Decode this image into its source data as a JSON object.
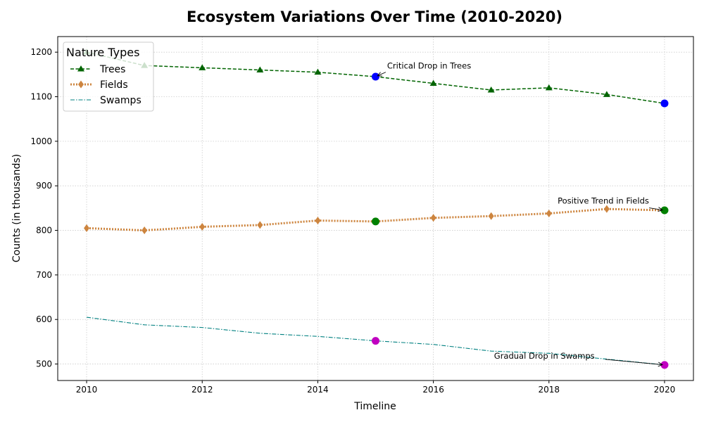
{
  "chart_data": {
    "type": "line",
    "title": "Ecosystem Variations Over Time (2010-2020)",
    "xlabel": "Timeline",
    "ylabel": "Counts (in thousands)",
    "xlim": [
      2009.5,
      2020.5
    ],
    "ylim": [
      463,
      1235
    ],
    "xticks": [
      2010,
      2012,
      2014,
      2016,
      2018,
      2020
    ],
    "yticks": [
      500,
      600,
      700,
      800,
      900,
      1000,
      1100,
      1200
    ],
    "grid": true,
    "legend": {
      "title": "Nature Types",
      "placement": "top-left"
    },
    "x": [
      2010,
      2011,
      2012,
      2013,
      2014,
      2015,
      2016,
      2017,
      2018,
      2019,
      2020
    ],
    "series": [
      {
        "name": "Trees",
        "color": "#006400",
        "marker": "triangle",
        "linestyle": "dashed",
        "values": [
          1200,
          1170,
          1165,
          1160,
          1155,
          1145,
          1130,
          1115,
          1120,
          1105,
          1085
        ]
      },
      {
        "name": "Fields",
        "color": "#cd853f",
        "marker": "diamond",
        "linestyle": "dotted",
        "values": [
          805,
          800,
          808,
          812,
          822,
          820,
          828,
          832,
          838,
          848,
          845
        ]
      },
      {
        "name": "Swamps",
        "color": "#008080",
        "marker": "none",
        "linestyle": "dashdot",
        "values": [
          605,
          588,
          582,
          569,
          562,
          552,
          544,
          529,
          524,
          511,
          498
        ]
      }
    ],
    "highlights": [
      {
        "x": 2015,
        "y": 1145,
        "color": "#0000ff"
      },
      {
        "x": 2020,
        "y": 1085,
        "color": "#0000ff"
      },
      {
        "x": 2015,
        "y": 820,
        "color": "#008000"
      },
      {
        "x": 2020,
        "y": 845,
        "color": "#008000"
      },
      {
        "x": 2015,
        "y": 552,
        "color": "#c000c0"
      },
      {
        "x": 2020,
        "y": 498,
        "color": "#c000c0"
      }
    ],
    "annotations": [
      {
        "text": "Critical Drop in Trees",
        "x": 2015,
        "y": 1145,
        "text_x": 2015.2,
        "text_y": 1163,
        "anchor": "start"
      },
      {
        "text": "Positive Trend in Fields",
        "x": 2020,
        "y": 845,
        "text_x": 2018.15,
        "text_y": 860,
        "anchor": "start"
      },
      {
        "text": "Gradual Drop in Swamps",
        "x": 2020,
        "y": 498,
        "text_x": 2017.05,
        "text_y": 512,
        "anchor": "start"
      }
    ]
  }
}
